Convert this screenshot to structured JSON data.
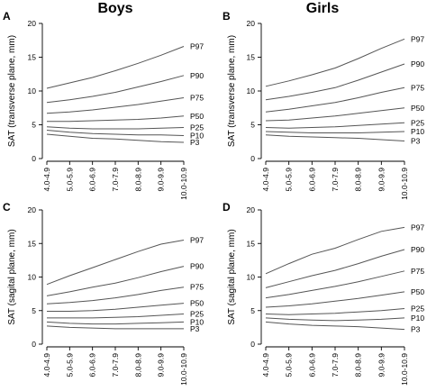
{
  "column_titles": [
    "Boys",
    "Girls"
  ],
  "chart_data": [
    {
      "panel": "A",
      "type": "line",
      "ylabel": "SAT (transverse plane, mm)",
      "ylim": [
        0,
        20
      ],
      "yticks": [
        0,
        5,
        10,
        15,
        20
      ],
      "categories": [
        "4.0-4.9",
        "5.0-5.9",
        "6.0-6.9",
        "7.0-7.9",
        "8.0-8.9",
        "9.0-9.9",
        "10.0-10.9"
      ],
      "series": [
        {
          "name": "P97",
          "values": [
            10.4,
            11.2,
            12.0,
            13.0,
            14.1,
            15.3,
            16.6
          ]
        },
        {
          "name": "P90",
          "values": [
            8.3,
            8.7,
            9.2,
            9.8,
            10.6,
            11.4,
            12.3
          ]
        },
        {
          "name": "P75",
          "values": [
            6.7,
            6.9,
            7.2,
            7.6,
            8.0,
            8.5,
            9.0
          ]
        },
        {
          "name": "P50",
          "values": [
            5.5,
            5.5,
            5.6,
            5.7,
            5.8,
            6.0,
            6.3
          ]
        },
        {
          "name": "P25",
          "values": [
            4.7,
            4.5,
            4.4,
            4.4,
            4.4,
            4.5,
            4.6
          ]
        },
        {
          "name": "P10",
          "values": [
            4.2,
            3.9,
            3.7,
            3.6,
            3.5,
            3.5,
            3.4
          ]
        },
        {
          "name": "P3",
          "values": [
            3.6,
            3.3,
            3.0,
            2.9,
            2.7,
            2.5,
            2.4
          ]
        }
      ]
    },
    {
      "panel": "B",
      "type": "line",
      "ylabel": "SAT (transverse plane, mm)",
      "ylim": [
        0,
        20
      ],
      "yticks": [
        0,
        5,
        10,
        15,
        20
      ],
      "categories": [
        "4.0-4.9",
        "5.0-5.9",
        "6.0-6.9",
        "7.0-7.9",
        "8.0-8.9",
        "9.0-9.9",
        "10.0-10.9"
      ],
      "series": [
        {
          "name": "P97",
          "values": [
            10.7,
            11.5,
            12.4,
            13.4,
            14.8,
            16.3,
            17.7
          ]
        },
        {
          "name": "P90",
          "values": [
            8.7,
            9.2,
            9.8,
            10.5,
            11.6,
            12.8,
            14.0
          ]
        },
        {
          "name": "P75",
          "values": [
            6.9,
            7.3,
            7.8,
            8.3,
            9.0,
            9.8,
            10.5
          ]
        },
        {
          "name": "P50",
          "values": [
            5.6,
            5.7,
            6.0,
            6.3,
            6.7,
            7.1,
            7.5
          ]
        },
        {
          "name": "P25",
          "values": [
            4.6,
            4.5,
            4.6,
            4.7,
            4.9,
            5.1,
            5.3
          ]
        },
        {
          "name": "P10",
          "values": [
            4.0,
            3.9,
            3.8,
            3.8,
            3.8,
            3.9,
            4.0
          ]
        },
        {
          "name": "P3",
          "values": [
            3.5,
            3.3,
            3.2,
            3.1,
            3.0,
            2.8,
            2.6
          ]
        }
      ]
    },
    {
      "panel": "C",
      "type": "line",
      "ylabel": "SAT (sagital plane, mm)",
      "ylim": [
        0,
        20
      ],
      "yticks": [
        0,
        5,
        10,
        15,
        20
      ],
      "categories": [
        "4.0-4.9",
        "5.0-5.9",
        "6.0-6.9",
        "7.0-7.9",
        "8.0-8.9",
        "9.0-9.9",
        "10.0-10.9"
      ],
      "series": [
        {
          "name": "P97",
          "values": [
            8.9,
            10.2,
            11.4,
            12.6,
            13.8,
            14.9,
            15.5
          ]
        },
        {
          "name": "P90",
          "values": [
            7.2,
            7.8,
            8.5,
            9.1,
            9.9,
            10.8,
            11.6
          ]
        },
        {
          "name": "P75",
          "values": [
            6.0,
            6.2,
            6.5,
            6.9,
            7.4,
            8.0,
            8.5
          ]
        },
        {
          "name": "P50",
          "values": [
            4.9,
            4.9,
            5.0,
            5.2,
            5.5,
            5.8,
            6.1
          ]
        },
        {
          "name": "P25",
          "values": [
            3.9,
            3.9,
            3.9,
            4.0,
            4.1,
            4.3,
            4.5
          ]
        },
        {
          "name": "P10",
          "values": [
            3.3,
            3.1,
            3.0,
            3.0,
            3.1,
            3.2,
            3.3
          ]
        },
        {
          "name": "P3",
          "values": [
            2.7,
            2.5,
            2.4,
            2.3,
            2.3,
            2.3,
            2.3
          ]
        }
      ]
    },
    {
      "panel": "D",
      "type": "line",
      "ylabel": "SAT (sagital plane, mm)",
      "ylim": [
        0,
        20
      ],
      "yticks": [
        0,
        5,
        10,
        15,
        20
      ],
      "categories": [
        "4.0-4.9",
        "5.0-5.9",
        "6.0-6.9",
        "7.0-7.9",
        "8.0-8.9",
        "9.0-9.9",
        "10.0-10.9"
      ],
      "series": [
        {
          "name": "P97",
          "values": [
            10.5,
            12.0,
            13.4,
            14.3,
            15.6,
            16.8,
            17.4
          ]
        },
        {
          "name": "P90",
          "values": [
            8.4,
            9.3,
            10.2,
            11.0,
            12.0,
            13.1,
            14.1
          ]
        },
        {
          "name": "P75",
          "values": [
            6.9,
            7.4,
            8.0,
            8.6,
            9.3,
            10.1,
            10.9
          ]
        },
        {
          "name": "P50",
          "values": [
            5.5,
            5.7,
            6.0,
            6.4,
            6.8,
            7.3,
            7.8
          ]
        },
        {
          "name": "P25",
          "values": [
            4.5,
            4.4,
            4.5,
            4.6,
            4.8,
            5.0,
            5.3
          ]
        },
        {
          "name": "P10",
          "values": [
            3.9,
            3.7,
            3.6,
            3.5,
            3.6,
            3.7,
            3.9
          ]
        },
        {
          "name": "P3",
          "values": [
            3.3,
            3.0,
            2.8,
            2.7,
            2.6,
            2.4,
            2.2
          ]
        }
      ]
    }
  ]
}
